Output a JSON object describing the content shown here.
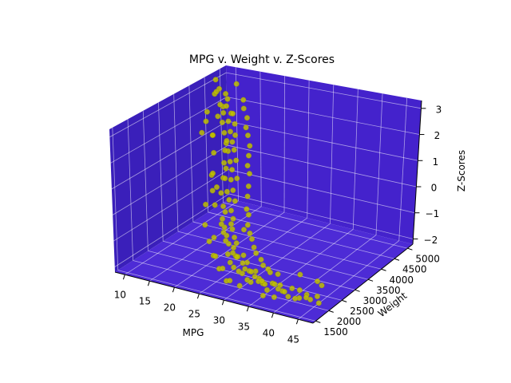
{
  "chart_data": {
    "type": "scatter3d",
    "title": "MPG v. Weight v. Z-Scores",
    "xlabel": "MPG",
    "ylabel": "Weight",
    "zlabel": "Z-Scores",
    "xlim": [
      8,
      48
    ],
    "ylim": [
      1400,
      5200
    ],
    "zlim": [
      -2.2,
      3.3
    ],
    "xticks": [
      10,
      15,
      20,
      25,
      30,
      35,
      40,
      45
    ],
    "yticks": [
      1500,
      2000,
      2500,
      3000,
      3500,
      4000,
      4500,
      5000
    ],
    "zticks": [
      -2,
      -1,
      0,
      1,
      2,
      3
    ],
    "zticklabels": [
      "−2",
      "−1",
      "0",
      "1",
      "2",
      "3"
    ],
    "grid": true,
    "pane_color": "#4422cc",
    "point_color": "#bfbf00",
    "points": [
      [
        9,
        4700,
        3.1
      ],
      [
        10,
        4650,
        2.8
      ],
      [
        10,
        4500,
        2.7
      ],
      [
        11,
        4400,
        2.9
      ],
      [
        11,
        4700,
        2.6
      ],
      [
        12,
        4600,
        2.5
      ],
      [
        12,
        4450,
        2.3
      ],
      [
        13,
        4400,
        2.4
      ],
      [
        13,
        4300,
        2.2
      ],
      [
        13,
        4550,
        2.0
      ],
      [
        14,
        4450,
        2.1
      ],
      [
        14,
        4300,
        1.9
      ],
      [
        14,
        4100,
        2.0
      ],
      [
        15,
        4350,
        1.8
      ],
      [
        15,
        4200,
        1.6
      ],
      [
        15,
        4000,
        1.7
      ],
      [
        16,
        4200,
        1.5
      ],
      [
        16,
        3900,
        1.4
      ],
      [
        16,
        4100,
        1.3
      ],
      [
        17,
        3800,
        1.2
      ],
      [
        17,
        4000,
        1.1
      ],
      [
        17,
        3700,
        1.3
      ],
      [
        18,
        3700,
        0.9
      ],
      [
        18,
        3500,
        1.0
      ],
      [
        18,
        3900,
        0.8
      ],
      [
        19,
        3600,
        0.7
      ],
      [
        19,
        3400,
        0.9
      ],
      [
        19,
        3300,
        0.6
      ],
      [
        20,
        3400,
        0.5
      ],
      [
        20,
        3200,
        0.7
      ],
      [
        20,
        3600,
        0.4
      ],
      [
        21,
        3100,
        0.3
      ],
      [
        21,
        3300,
        0.2
      ],
      [
        21,
        2900,
        0.4
      ],
      [
        22,
        3000,
        0.1
      ],
      [
        22,
        2800,
        0.0
      ],
      [
        22,
        3200,
        -0.1
      ],
      [
        23,
        2900,
        -0.2
      ],
      [
        23,
        2700,
        -0.1
      ],
      [
        23,
        2600,
        -0.3
      ],
      [
        24,
        2800,
        -0.4
      ],
      [
        24,
        2500,
        -0.5
      ],
      [
        24,
        2400,
        -0.3
      ],
      [
        25,
        2600,
        -0.6
      ],
      [
        25,
        2400,
        -0.7
      ],
      [
        25,
        2300,
        -0.5
      ],
      [
        26,
        2500,
        -0.8
      ],
      [
        26,
        2300,
        -0.9
      ],
      [
        26,
        2200,
        -0.7
      ],
      [
        27,
        2300,
        -1.0
      ],
      [
        27,
        2100,
        -1.1
      ],
      [
        27,
        2400,
        -0.9
      ],
      [
        28,
        2200,
        -1.2
      ],
      [
        28,
        2100,
        -1.0
      ],
      [
        28,
        2000,
        -1.3
      ],
      [
        29,
        2100,
        -1.1
      ],
      [
        29,
        1950,
        -1.4
      ],
      [
        29,
        2300,
        -1.2
      ],
      [
        30,
        2100,
        -1.3
      ],
      [
        30,
        1950,
        -1.5
      ],
      [
        30,
        2250,
        -1.4
      ],
      [
        31,
        2000,
        -1.4
      ],
      [
        31,
        2150,
        -1.6
      ],
      [
        31,
        1900,
        -1.5
      ],
      [
        32,
        2050,
        -1.5
      ],
      [
        32,
        1900,
        -1.7
      ],
      [
        32,
        2200,
        -1.6
      ],
      [
        33,
        2000,
        -1.6
      ],
      [
        33,
        2150,
        -1.8
      ],
      [
        33,
        1850,
        -1.7
      ],
      [
        34,
        1950,
        -1.7
      ],
      [
        34,
        2100,
        -1.9
      ],
      [
        35,
        2000,
        -1.8
      ],
      [
        35,
        1900,
        -1.6
      ],
      [
        36,
        2100,
        -1.8
      ],
      [
        36,
        1900,
        -1.9
      ],
      [
        37,
        2000,
        -1.7
      ],
      [
        37,
        2200,
        -1.9
      ],
      [
        38,
        1950,
        -1.8
      ],
      [
        38,
        2100,
        -2.0
      ],
      [
        39,
        2000,
        -1.9
      ],
      [
        40,
        2100,
        -1.8
      ],
      [
        40,
        1950,
        -2.0
      ],
      [
        41,
        2200,
        -1.9
      ],
      [
        42,
        2000,
        -2.0
      ],
      [
        43,
        2100,
        -1.9
      ],
      [
        44,
        2050,
        -2.0
      ],
      [
        46,
        2000,
        -2.0
      ],
      [
        14,
        4800,
        2.4
      ],
      [
        16,
        4600,
        1.9
      ],
      [
        18,
        4300,
        1.5
      ],
      [
        20,
        4000,
        1.0
      ],
      [
        22,
        3700,
        0.6
      ],
      [
        24,
        3300,
        0.1
      ],
      [
        26,
        3000,
        -0.3
      ],
      [
        28,
        2700,
        -0.7
      ],
      [
        30,
        2500,
        -1.0
      ],
      [
        32,
        2400,
        -1.3
      ],
      [
        34,
        2300,
        -1.5
      ],
      [
        36,
        2300,
        -1.6
      ],
      [
        12,
        4900,
        2.9
      ],
      [
        15,
        4650,
        2.2
      ],
      [
        17,
        4400,
        1.7
      ],
      [
        19,
        4200,
        1.2
      ],
      [
        21,
        3800,
        0.8
      ],
      [
        23,
        3500,
        0.3
      ],
      [
        25,
        3100,
        -0.2
      ],
      [
        27,
        2800,
        -0.5
      ],
      [
        29,
        2600,
        -0.8
      ],
      [
        31,
        2400,
        -1.1
      ],
      [
        33,
        2300,
        -1.4
      ],
      [
        35,
        2200,
        -1.5
      ],
      [
        13,
        4200,
        2.6
      ],
      [
        18,
        3600,
        1.8
      ],
      [
        22,
        2600,
        0.9
      ],
      [
        26,
        2400,
        -0.2
      ],
      [
        28,
        2500,
        -0.4
      ],
      [
        30,
        1900,
        -0.9
      ],
      [
        20,
        2800,
        1.2
      ],
      [
        24,
        2200,
        0.6
      ],
      [
        17,
        3300,
        2.2
      ],
      [
        15,
        3800,
        2.5
      ],
      [
        19,
        2700,
        0.0
      ],
      [
        23,
        2300,
        -0.8
      ],
      [
        25,
        2000,
        -1.2
      ],
      [
        27,
        1900,
        -1.5
      ],
      [
        29,
        1800,
        -1.8
      ],
      [
        31,
        1800,
        -1.9
      ],
      [
        11,
        3900,
        1.6
      ],
      [
        12,
        4100,
        1.4
      ],
      [
        14,
        3800,
        1.0
      ],
      [
        16,
        3400,
        0.5
      ],
      [
        18,
        3100,
        0.2
      ],
      [
        20,
        2500,
        -0.6
      ],
      [
        22,
        2300,
        -1.0
      ],
      [
        24,
        2100,
        -1.3
      ],
      [
        26,
        1950,
        -1.6
      ],
      [
        28,
        1850,
        -1.9
      ],
      [
        9,
        4400,
        2.0
      ],
      [
        10,
        4200,
        1.8
      ],
      [
        36,
        1750,
        -2.0
      ],
      [
        38,
        1800,
        -2.0
      ],
      [
        42,
        1850,
        -1.9
      ],
      [
        44,
        1900,
        -1.8
      ],
      [
        46,
        1950,
        -1.7
      ],
      [
        45,
        2300,
        -1.6
      ],
      [
        43,
        2500,
        -1.7
      ],
      [
        40,
        2400,
        -1.5
      ]
    ]
  }
}
